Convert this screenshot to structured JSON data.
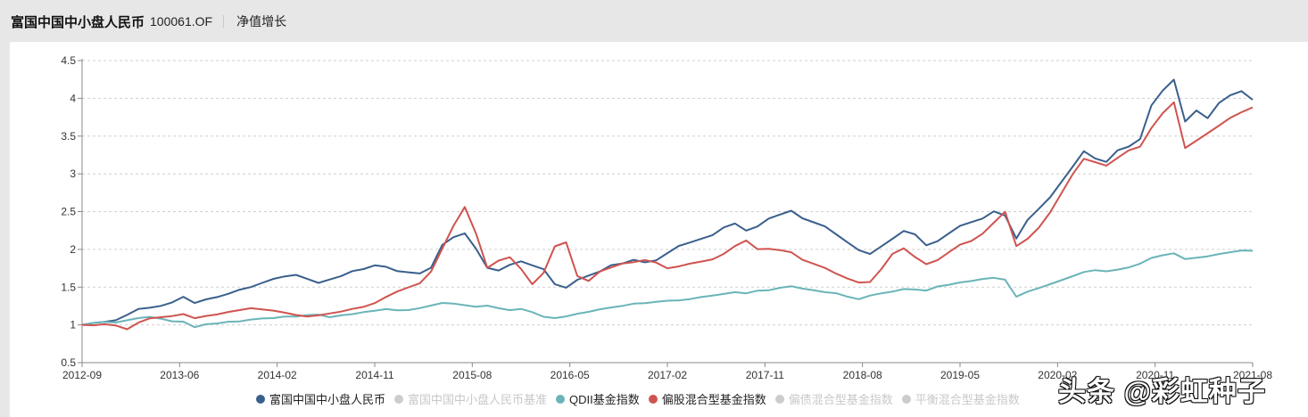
{
  "header": {
    "fund_name": "富国中国中小盘人民币",
    "fund_code": "100061.OF",
    "tab": "净值增长"
  },
  "watermark": "头条 @彩虹种子",
  "colors": {
    "fund": "#3a5f8c",
    "benchmark": "#cccccc",
    "qdii": "#6ab4b8",
    "equity_hybrid": "#cf5450",
    "bond_hybrid": "#cccccc",
    "balanced_hybrid": "#cccccc",
    "grid": "#cfcfcf",
    "axis": "#888888"
  },
  "chart_data": {
    "type": "line",
    "title": "净值增长",
    "xlabel": "",
    "ylabel": "",
    "ylim": [
      0.5,
      4.5
    ],
    "yticks": [
      "0.5",
      "1",
      "1.5",
      "2",
      "2.5",
      "3",
      "3.5",
      "4",
      "4.5"
    ],
    "xticks": [
      "2012-09",
      "2013-06",
      "2014-02",
      "2014-11",
      "2015-08",
      "2016-05",
      "2017-02",
      "2017-11",
      "2018-08",
      "2019-05",
      "2020-02",
      "2020-11",
      "2021-08"
    ],
    "grid": "horizontal dashed",
    "legend_position": "bottom",
    "legend": [
      {
        "name": "富国中国中小盘人民币",
        "active": true
      },
      {
        "name": "富国中国中小盘人民币基准",
        "active": false
      },
      {
        "name": "QDII基金指数",
        "active": true
      },
      {
        "name": "偏股混合型基金指数",
        "active": true
      },
      {
        "name": "偏债混合型基金指数",
        "active": false
      },
      {
        "name": "平衡混合型基金指数",
        "active": false
      }
    ],
    "x_fraction_note": "values sampled evenly from 2012-09 to 2021-08",
    "series": [
      {
        "name": "富国中国中小盘人民币",
        "color": "#3a5f8c",
        "values": [
          1.0,
          1.02,
          1.03,
          1.05,
          1.12,
          1.2,
          1.22,
          1.25,
          1.3,
          1.38,
          1.3,
          1.35,
          1.38,
          1.42,
          1.47,
          1.5,
          1.55,
          1.6,
          1.63,
          1.65,
          1.6,
          1.55,
          1.6,
          1.65,
          1.72,
          1.75,
          1.8,
          1.78,
          1.72,
          1.7,
          1.68,
          1.75,
          2.05,
          2.15,
          2.2,
          2.0,
          1.75,
          1.72,
          1.8,
          1.85,
          1.8,
          1.75,
          1.55,
          1.5,
          1.6,
          1.65,
          1.7,
          1.78,
          1.8,
          1.85,
          1.82,
          1.85,
          1.95,
          2.05,
          2.1,
          2.15,
          2.2,
          2.3,
          2.35,
          2.25,
          2.3,
          2.4,
          2.45,
          2.5,
          2.4,
          2.35,
          2.3,
          2.2,
          2.1,
          2.0,
          1.95,
          2.05,
          2.15,
          2.25,
          2.2,
          2.05,
          2.1,
          2.2,
          2.3,
          2.35,
          2.4,
          2.5,
          2.45,
          2.15,
          2.4,
          2.55,
          2.7,
          2.9,
          3.1,
          3.3,
          3.2,
          3.15,
          3.3,
          3.35,
          3.45,
          3.9,
          4.1,
          4.25,
          3.7,
          3.85,
          3.75,
          3.95,
          4.05,
          4.1,
          3.98
        ]
      },
      {
        "name": "QDII基金指数",
        "color": "#6ab4b8",
        "values": [
          1.0,
          1.02,
          1.03,
          1.02,
          1.05,
          1.08,
          1.1,
          1.08,
          1.05,
          1.05,
          0.98,
          1.02,
          1.03,
          1.05,
          1.05,
          1.07,
          1.08,
          1.08,
          1.1,
          1.1,
          1.12,
          1.13,
          1.1,
          1.13,
          1.15,
          1.18,
          1.2,
          1.22,
          1.2,
          1.2,
          1.22,
          1.25,
          1.28,
          1.27,
          1.25,
          1.23,
          1.25,
          1.22,
          1.2,
          1.22,
          1.18,
          1.12,
          1.1,
          1.12,
          1.15,
          1.17,
          1.2,
          1.22,
          1.24,
          1.27,
          1.28,
          1.3,
          1.32,
          1.33,
          1.35,
          1.38,
          1.4,
          1.42,
          1.44,
          1.42,
          1.45,
          1.45,
          1.48,
          1.5,
          1.47,
          1.45,
          1.43,
          1.42,
          1.38,
          1.35,
          1.4,
          1.43,
          1.45,
          1.48,
          1.47,
          1.45,
          1.5,
          1.52,
          1.55,
          1.57,
          1.6,
          1.62,
          1.6,
          1.38,
          1.45,
          1.5,
          1.55,
          1.6,
          1.65,
          1.7,
          1.72,
          1.7,
          1.72,
          1.75,
          1.8,
          1.88,
          1.92,
          1.95,
          1.88,
          1.9,
          1.92,
          1.95,
          1.97,
          1.99,
          1.98
        ]
      },
      {
        "name": "偏股混合型基金指数",
        "color": "#cf5450",
        "values": [
          1.0,
          0.99,
          1.0,
          0.98,
          0.93,
          1.02,
          1.08,
          1.1,
          1.12,
          1.15,
          1.1,
          1.13,
          1.15,
          1.18,
          1.2,
          1.22,
          1.2,
          1.18,
          1.15,
          1.12,
          1.1,
          1.12,
          1.15,
          1.18,
          1.22,
          1.25,
          1.3,
          1.38,
          1.45,
          1.5,
          1.55,
          1.7,
          2.0,
          2.3,
          2.55,
          2.2,
          1.75,
          1.85,
          1.9,
          1.75,
          1.55,
          1.7,
          2.05,
          2.1,
          1.65,
          1.58,
          1.7,
          1.75,
          1.8,
          1.82,
          1.85,
          1.82,
          1.75,
          1.78,
          1.82,
          1.85,
          1.88,
          1.95,
          2.05,
          2.12,
          2.0,
          2.0,
          1.98,
          1.95,
          1.85,
          1.8,
          1.75,
          1.68,
          1.62,
          1.57,
          1.58,
          1.75,
          1.95,
          2.02,
          1.9,
          1.8,
          1.85,
          1.95,
          2.05,
          2.1,
          2.2,
          2.35,
          2.5,
          2.05,
          2.15,
          2.3,
          2.5,
          2.75,
          3.0,
          3.2,
          3.15,
          3.1,
          3.2,
          3.3,
          3.35,
          3.6,
          3.8,
          3.95,
          3.35,
          3.45,
          3.55,
          3.65,
          3.75,
          3.82,
          3.88
        ]
      }
    ]
  }
}
